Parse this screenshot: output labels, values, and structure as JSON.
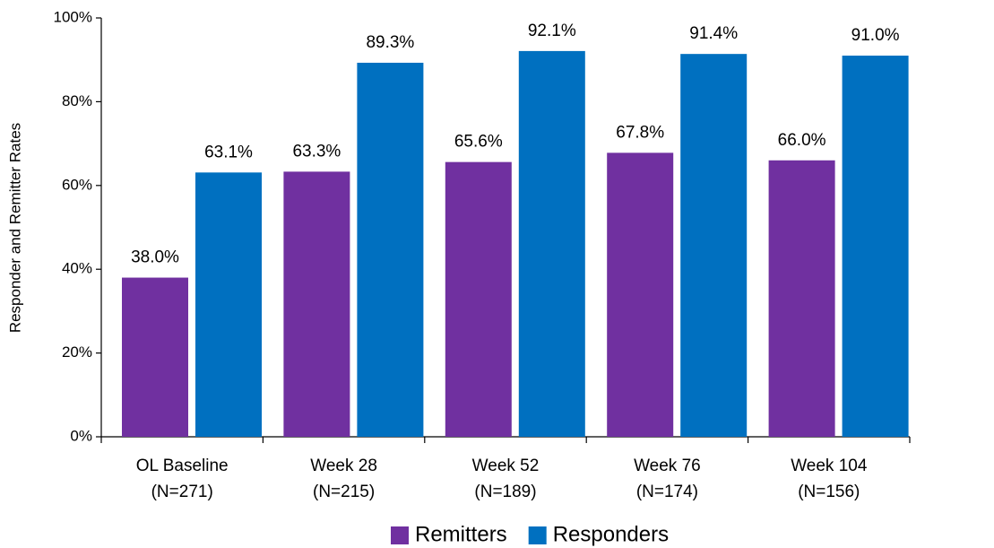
{
  "chart_data": {
    "type": "bar",
    "y_label": "Responder and Remitter Rates",
    "categories": [
      [
        "OL Baseline",
        "(N=271)"
      ],
      [
        "Week 28",
        "(N=215)"
      ],
      [
        "Week 52",
        "(N=189)"
      ],
      [
        "Week 76",
        "(N=174)"
      ],
      [
        "Week 104",
        "(N=156)"
      ]
    ],
    "series": [
      {
        "name": "Remitters",
        "color": "#7030a0",
        "values": [
          38.0,
          63.3,
          65.6,
          67.8,
          66.0
        ],
        "value_labels": [
          "38.0%",
          "63.3%",
          "65.6%",
          "67.8%",
          "66.0%"
        ]
      },
      {
        "name": "Responders",
        "color": "#0070c0",
        "values": [
          63.1,
          89.3,
          92.1,
          91.4,
          91.0
        ],
        "value_labels": [
          "63.1%",
          "89.3%",
          "92.1%",
          "91.4%",
          "91.0%"
        ]
      }
    ],
    "ylim": [
      0,
      100
    ],
    "yticks": [
      {
        "value": 0,
        "label": "0%"
      },
      {
        "value": 20,
        "label": "20%"
      },
      {
        "value": 40,
        "label": "40%"
      },
      {
        "value": 60,
        "label": "60%"
      },
      {
        "value": 80,
        "label": "80%"
      },
      {
        "value": 100,
        "label": "100%"
      }
    ],
    "legend": "bottom"
  }
}
